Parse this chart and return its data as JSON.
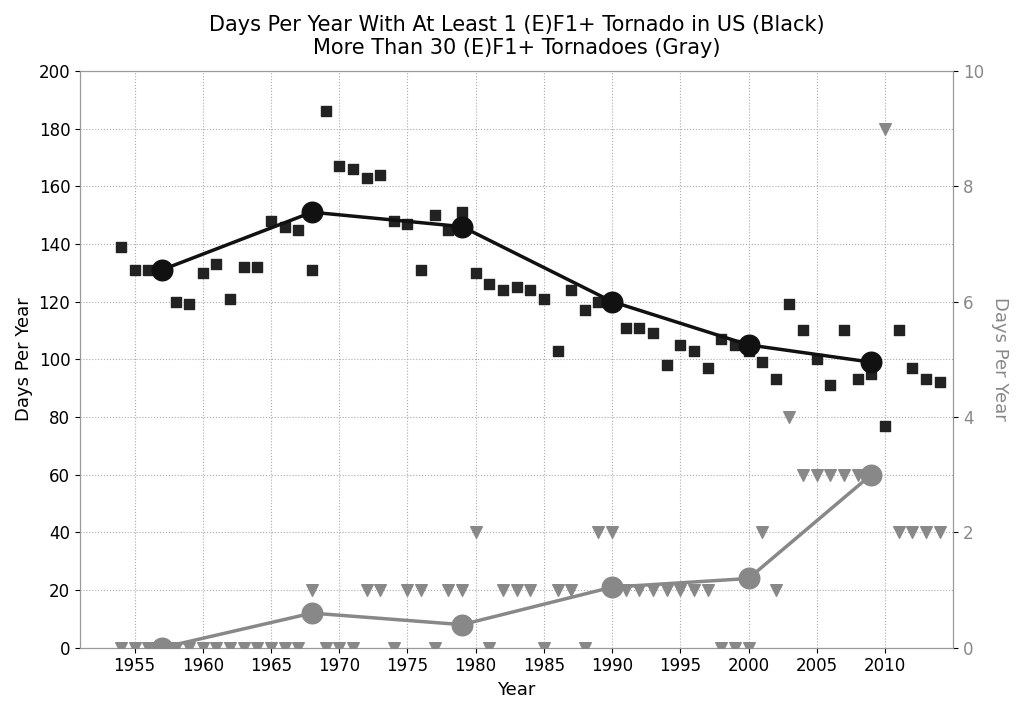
{
  "title_line1": "Days Per Year With At Least 1 (E)F1+ Tornado in US (Black)",
  "title_line2": "More Than 30 (E)F1+ Tornadoes (Gray)",
  "xlabel": "Year",
  "ylabel_left": "Days Per Year",
  "ylabel_right": "Days Per Year",
  "ylim_left": [
    0,
    200
  ],
  "ylim_right": [
    0,
    10
  ],
  "xlim": [
    1951,
    2015
  ],
  "background_color": "#ffffff",
  "black_scatter_years": [
    1954,
    1955,
    1956,
    1957,
    1958,
    1959,
    1960,
    1961,
    1962,
    1963,
    1964,
    1965,
    1966,
    1967,
    1968,
    1969,
    1970,
    1971,
    1972,
    1973,
    1974,
    1975,
    1976,
    1977,
    1978,
    1979,
    1980,
    1981,
    1982,
    1983,
    1984,
    1985,
    1986,
    1987,
    1988,
    1989,
    1990,
    1991,
    1992,
    1993,
    1994,
    1995,
    1996,
    1997,
    1998,
    1999,
    2000,
    2001,
    2002,
    2003,
    2004,
    2005,
    2006,
    2007,
    2008,
    2009,
    2010,
    2011,
    2012,
    2013,
    2014
  ],
  "black_scatter_values": [
    139,
    131,
    131,
    131,
    120,
    119,
    130,
    133,
    121,
    132,
    132,
    148,
    146,
    145,
    131,
    186,
    167,
    166,
    163,
    164,
    148,
    147,
    131,
    150,
    145,
    151,
    130,
    126,
    124,
    125,
    124,
    121,
    103,
    124,
    117,
    120,
    119,
    111,
    111,
    109,
    98,
    105,
    103,
    97,
    107,
    105,
    103,
    99,
    93,
    119,
    110,
    100,
    91,
    110,
    93,
    95,
    77,
    110,
    97,
    93,
    92
  ],
  "black_smooth_years": [
    1957,
    1968,
    1979,
    1990,
    2000,
    2009
  ],
  "black_smooth_values": [
    131,
    151,
    146,
    120,
    105,
    99
  ],
  "gray_scatter_years": [
    1954,
    1955,
    1956,
    1957,
    1958,
    1959,
    1960,
    1961,
    1962,
    1963,
    1964,
    1965,
    1966,
    1967,
    1968,
    1969,
    1970,
    1971,
    1972,
    1973,
    1974,
    1975,
    1976,
    1977,
    1978,
    1979,
    1980,
    1981,
    1982,
    1983,
    1984,
    1985,
    1986,
    1987,
    1988,
    1989,
    1990,
    1991,
    1992,
    1993,
    1994,
    1995,
    1996,
    1997,
    1998,
    1999,
    2000,
    2001,
    2002,
    2003,
    2004,
    2005,
    2006,
    2007,
    2008,
    2009,
    2010,
    2011,
    2012,
    2013,
    2014
  ],
  "gray_scatter_values": [
    0,
    0,
    0,
    0,
    0,
    0,
    0,
    0,
    0,
    0,
    0,
    0,
    0,
    0,
    1,
    0,
    0,
    0,
    1,
    1,
    0,
    1,
    1,
    0,
    1,
    1,
    2,
    0,
    1,
    1,
    1,
    0,
    1,
    1,
    0,
    2,
    2,
    1,
    1,
    1,
    1,
    1,
    1,
    1,
    0,
    0,
    0,
    2,
    1,
    4,
    3,
    3,
    3,
    3,
    3,
    3,
    9,
    2,
    2,
    2,
    2
  ],
  "gray_smooth_years": [
    1957,
    1968,
    1979,
    1990,
    2000,
    2009
  ],
  "gray_smooth_values": [
    0.0,
    0.6,
    0.4,
    1.05,
    1.2,
    3.0
  ],
  "black_scatter_color": "#222222",
  "black_line_color": "#111111",
  "gray_scatter_color": "#888888",
  "gray_line_color": "#888888",
  "grid_color": "#aaaaaa",
  "title_fontsize": 15,
  "label_fontsize": 13,
  "tick_fontsize": 12,
  "xticks": [
    1955,
    1960,
    1965,
    1970,
    1975,
    1980,
    1985,
    1990,
    1995,
    2000,
    2005,
    2010
  ]
}
